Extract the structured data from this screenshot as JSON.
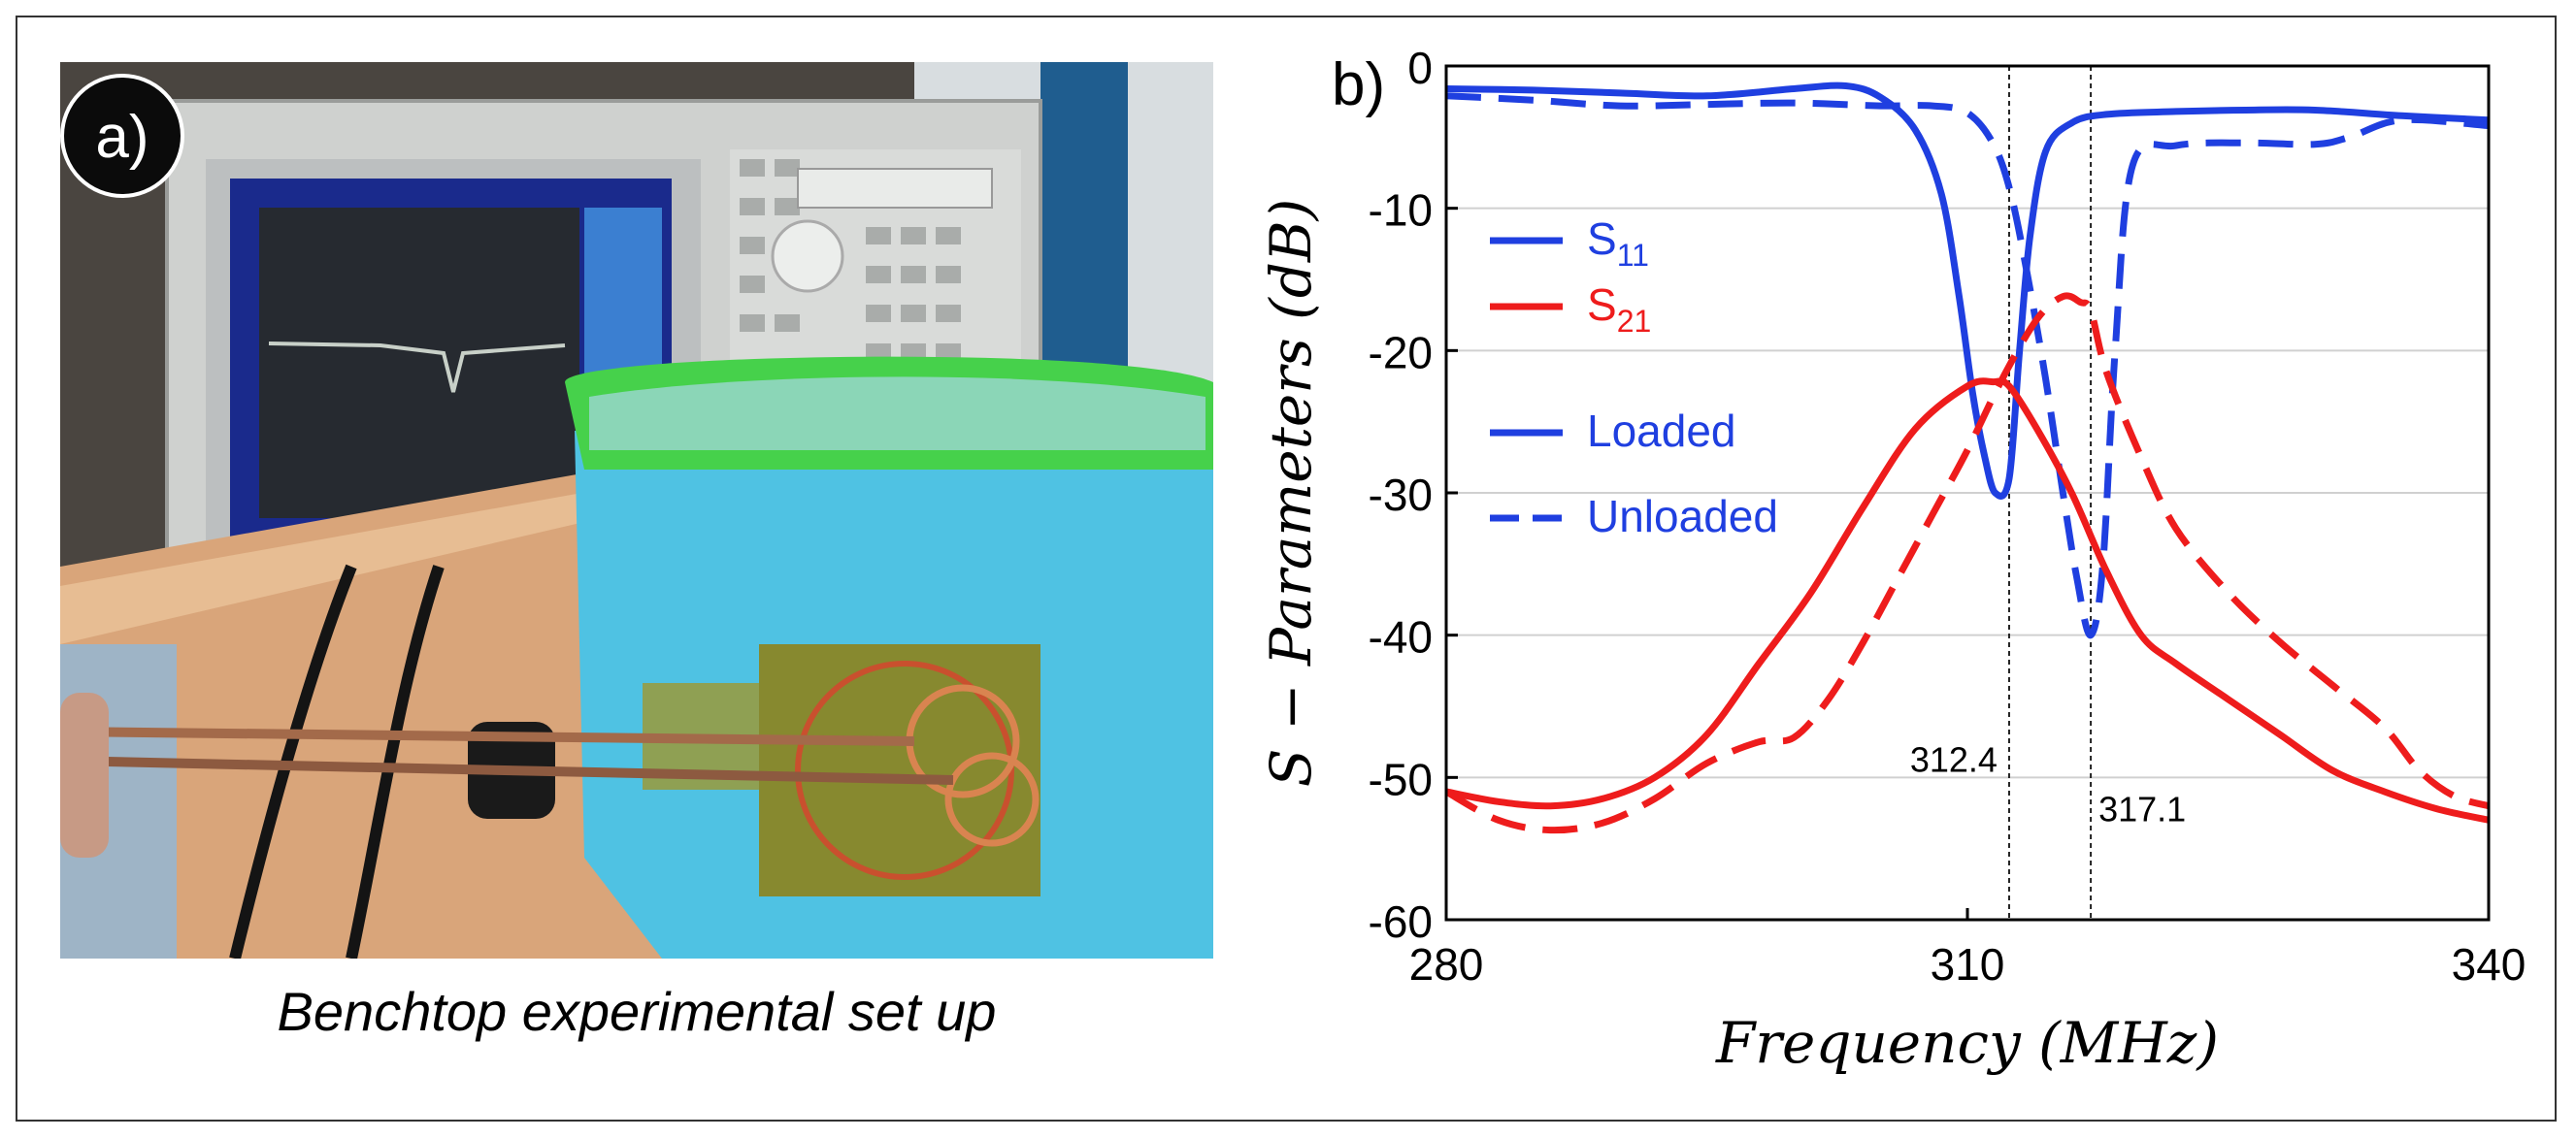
{
  "panel_a": {
    "label": "a)",
    "caption": "Benchtop experimental set up"
  },
  "panel_b": {
    "label": "b)"
  },
  "chart_data": {
    "type": "line",
    "title": "",
    "xlabel": "Frequency (MHz)",
    "ylabel": "S − Parameters (dB)",
    "xlim": [
      280,
      340
    ],
    "ylim": [
      -60,
      0
    ],
    "xticks": [
      280,
      310,
      340
    ],
    "yticks": [
      0,
      -10,
      -20,
      -30,
      -40,
      -50,
      -60
    ],
    "grid": "horizontal",
    "legend_position": "top-left",
    "legend": {
      "s11_label": "S",
      "s11_sub": "11",
      "s21_label": "S",
      "s21_sub": "21",
      "loaded_label": "Loaded",
      "unloaded_label": "Unloaded"
    },
    "colors": {
      "s11": "#1f3fe0",
      "s21": "#ee1c1c",
      "vline": "#222222"
    },
    "annotations": [
      {
        "text": "312.4",
        "x": 312.4
      },
      {
        "text": "317.1",
        "x": 317.1
      }
    ],
    "series": [
      {
        "name": "S11 Loaded",
        "param": "S11",
        "state": "Loaded",
        "dash": false,
        "x": [
          280,
          285,
          290,
          295,
          300,
          303,
          305,
          307,
          308.5,
          309.5,
          310.3,
          311,
          311.6,
          312.4,
          313,
          313.6,
          314.5,
          316,
          318,
          322,
          326,
          330,
          335,
          340
        ],
        "y": [
          -1.6,
          -1.7,
          -1.9,
          -2.1,
          -1.6,
          -1.4,
          -2.2,
          -4.5,
          -9,
          -16,
          -23,
          -27.5,
          -30,
          -29,
          -20,
          -12,
          -6,
          -4,
          -3.4,
          -3.2,
          -3.1,
          -3.1,
          -3.5,
          -3.8
        ]
      },
      {
        "name": "S11 Unloaded",
        "param": "S11",
        "state": "Unloaded",
        "dash": true,
        "x": [
          280,
          285,
          290,
          295,
          300,
          305,
          308,
          310,
          311.5,
          312.5,
          313.5,
          314.5,
          315.5,
          316.3,
          317.1,
          317.8,
          318.5,
          319.5,
          322,
          326,
          330,
          332,
          335,
          340
        ],
        "y": [
          -2.1,
          -2.4,
          -2.8,
          -2.7,
          -2.6,
          -2.8,
          -2.8,
          -3.3,
          -5.5,
          -9,
          -15,
          -22,
          -30,
          -36,
          -40,
          -35,
          -20,
          -7,
          -5.6,
          -5.4,
          -5.5,
          -5.0,
          -3.8,
          -4.2
        ]
      },
      {
        "name": "S21 Loaded",
        "param": "S21",
        "state": "Loaded",
        "dash": false,
        "x": [
          280,
          283,
          286,
          289,
          292,
          295,
          298,
          301,
          304,
          307,
          310,
          311.5,
          312.4,
          314,
          316,
          318,
          320,
          322,
          325,
          328,
          331,
          334,
          337,
          340
        ],
        "y": [
          -51,
          -51.7,
          -52,
          -51.5,
          -50,
          -47,
          -42,
          -37,
          -31,
          -25.5,
          -22.5,
          -22.2,
          -22.5,
          -25.5,
          -30,
          -35.5,
          -40,
          -42,
          -44.5,
          -47,
          -49.5,
          -51,
          -52.2,
          -53
        ]
      },
      {
        "name": "S21 Unloaded",
        "param": "S21",
        "state": "Unloaded",
        "dash": true,
        "x": [
          280,
          283,
          286,
          289,
          292,
          295,
          298,
          300,
          302,
          304,
          306,
          308,
          310,
          312,
          314,
          315.5,
          316.5,
          317.1,
          318,
          320,
          322,
          325,
          328,
          331,
          334,
          336,
          338,
          340
        ],
        "y": [
          -51,
          -53,
          -53.7,
          -53.2,
          -51.5,
          -49,
          -47.5,
          -47.2,
          -44.5,
          -40.5,
          -36,
          -31.5,
          -27,
          -22,
          -17.8,
          -16.2,
          -16.6,
          -17.2,
          -21.5,
          -27.5,
          -32.5,
          -37,
          -40.5,
          -43.5,
          -46.5,
          -49.5,
          -51.3,
          -52
        ]
      }
    ]
  }
}
